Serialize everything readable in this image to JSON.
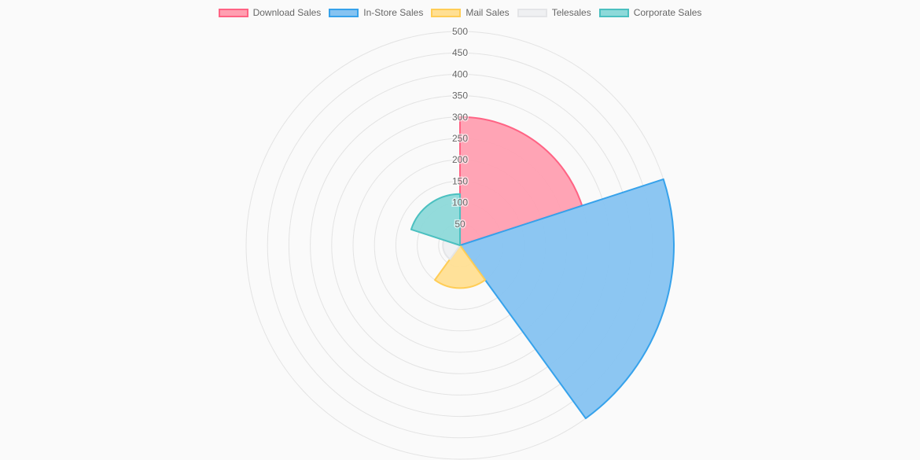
{
  "chart_data": {
    "type": "polarArea",
    "title": "",
    "legend_position": "top",
    "radial_axis": {
      "min": 0,
      "max": 500,
      "ticks": [
        "50",
        "100",
        "150",
        "200",
        "250",
        "300",
        "350",
        "400",
        "450",
        "500"
      ],
      "grid": true
    },
    "categories": [
      "Download Sales",
      "In-Store Sales",
      "Mail Sales",
      "Telesales",
      "Corporate Sales"
    ],
    "values": [
      300,
      500,
      100,
      40,
      120
    ],
    "colors": {
      "fill": [
        "#ff9fb1",
        "#86c3f1",
        "#ffdf93",
        "#eff0f2",
        "#8dd9d9"
      ],
      "border": [
        "#ff6384",
        "#36a2eb",
        "#ffcd56",
        "#e4e5e7",
        "#4bc0c0"
      ]
    }
  }
}
